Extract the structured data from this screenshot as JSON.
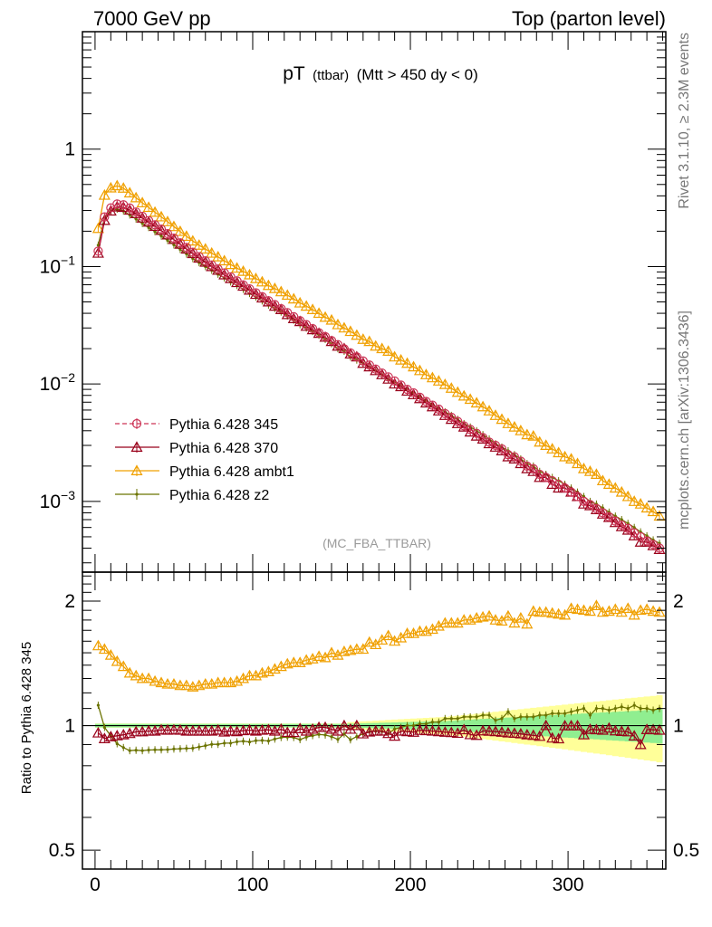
{
  "header": {
    "left": "7000 GeV pp",
    "right": "Top (parton level)"
  },
  "plot_title": {
    "main": "pT",
    "small": "(ttbar)",
    "cut": "(Mtt > 450 dy < 0)"
  },
  "watermark": "(MC_FBA_TTBAR)",
  "side_labels": {
    "rivet": "Rivet 3.1.10, ≥ 2.3M events",
    "mcplots": "mcplots.cern.ch [arXiv:1306.3436]"
  },
  "colors": {
    "p345": "#cc3355",
    "p370": "#99001a",
    "ambt1": "#f0a000",
    "z2": "#6b7300",
    "band_inner": "#90ee90",
    "band_outer": "#ffff99"
  },
  "chart_data": [
    {
      "type": "line",
      "yscale": "log",
      "xlim": [
        -8,
        362
      ],
      "ylim": [
        0.00025,
        10
      ],
      "ylabel": "",
      "yticks": [
        {
          "value": 1,
          "label": "1"
        },
        {
          "value": 0.1,
          "label": "10",
          "exp": "−1"
        },
        {
          "value": 0.01,
          "label": "10",
          "exp": "−2"
        },
        {
          "value": 0.001,
          "label": "10",
          "exp": "−3"
        }
      ],
      "legend_position": "bottom-left",
      "x": [
        2,
        6,
        10,
        14,
        18,
        22,
        26,
        30,
        34,
        38,
        42,
        46,
        50,
        54,
        58,
        62,
        66,
        70,
        74,
        78,
        82,
        86,
        90,
        94,
        98,
        102,
        106,
        110,
        114,
        118,
        122,
        126,
        130,
        134,
        138,
        142,
        146,
        150,
        154,
        158,
        162,
        166,
        170,
        174,
        178,
        182,
        186,
        190,
        194,
        198,
        202,
        206,
        210,
        214,
        218,
        222,
        226,
        230,
        234,
        238,
        242,
        246,
        250,
        254,
        258,
        262,
        266,
        270,
        274,
        278,
        282,
        286,
        290,
        294,
        298,
        302,
        306,
        310,
        314,
        318,
        322,
        326,
        330,
        334,
        338,
        342,
        346,
        350,
        354,
        358
      ],
      "series": [
        {
          "name": "Pythia 6.428 345",
          "key": "p345",
          "marker": "circle",
          "dashed": true,
          "values": [
            0.1353,
            0.2645,
            0.3163,
            0.3407,
            0.3356,
            0.3155,
            0.2914,
            0.2679,
            0.2462,
            0.2265,
            0.2082,
            0.1908,
            0.1743,
            0.1592,
            0.1453,
            0.1326,
            0.1216,
            0.1119,
            0.1032,
            0.0954,
            0.0882,
            0.0816,
            0.0755,
            0.0698,
            0.0646,
            0.0598,
            0.0554,
            0.0512,
            0.0474,
            0.0438,
            0.0405,
            0.0374,
            0.0346,
            0.032,
            0.0296,
            0.0273,
            0.0253,
            0.0234,
            0.0216,
            0.0199,
            0.0184,
            0.017,
            0.0157,
            0.0145,
            0.0134,
            0.0124,
            0.0115,
            0.0106,
            0.0098,
            0.009,
            0.0084,
            0.0077,
            0.0071,
            0.0066,
            0.0061,
            0.0056,
            0.0052,
            0.0048,
            0.0044,
            0.0041,
            0.0038,
            0.0035,
            0.0032,
            0.003,
            0.0028,
            0.0025,
            0.0024,
            0.0022,
            0.002,
            0.0019,
            0.0017,
            0.0016,
            0.0015,
            0.0014,
            0.0013,
            0.0012,
            0.0011,
            0.001,
            0.00094,
            0.00087,
            0.0008,
            0.00074,
            0.00068,
            0.00063,
            0.00059,
            0.00054,
            0.0005,
            0.00046,
            0.00043,
            0.0004
          ]
        },
        {
          "name": "Pythia 6.428 370",
          "key": "p370",
          "marker": "triangle",
          "dashed": false,
          "values": [
            0.13,
            0.247,
            0.297,
            0.322,
            0.319,
            0.302,
            0.282,
            0.259,
            0.239,
            0.22,
            0.203,
            0.186,
            0.17,
            0.155,
            0.141,
            0.129,
            0.118,
            0.109,
            0.1,
            0.093,
            0.085,
            0.079,
            0.073,
            0.068,
            0.063,
            0.058,
            0.054,
            0.05,
            0.046,
            0.043,
            0.039,
            0.036,
            0.034,
            0.031,
            0.029,
            0.027,
            0.025,
            0.023,
            0.021,
            0.02,
            0.018,
            0.017,
            0.015,
            0.014,
            0.013,
            0.012,
            0.011,
            0.01,
            0.0095,
            0.0087,
            0.0081,
            0.0075,
            0.0069,
            0.0064,
            0.0059,
            0.0054,
            0.005,
            0.0046,
            0.0043,
            0.0039,
            0.0036,
            0.0034,
            0.0031,
            0.0029,
            0.0027,
            0.0024,
            0.0023,
            0.0021,
            0.0019,
            0.0018,
            0.0016,
            0.0016,
            0.0014,
            0.0013,
            0.0013,
            0.0012,
            0.0011,
            0.00095,
            0.00092,
            0.00085,
            0.00078,
            0.00073,
            0.00066,
            0.00061,
            0.00057,
            0.00051,
            0.00045,
            0.00045,
            0.00042,
            0.00039
          ]
        },
        {
          "name": "Pythia 6.428 ambt1",
          "key": "ambt1",
          "marker": "triangle",
          "dashed": false,
          "values": [
            0.211,
            0.405,
            0.467,
            0.487,
            0.465,
            0.424,
            0.385,
            0.349,
            0.319,
            0.29,
            0.265,
            0.241,
            0.219,
            0.199,
            0.181,
            0.165,
            0.152,
            0.141,
            0.13,
            0.121,
            0.112,
            0.104,
            0.097,
            0.091,
            0.085,
            0.079,
            0.074,
            0.069,
            0.065,
            0.061,
            0.057,
            0.053,
            0.049,
            0.046,
            0.043,
            0.04,
            0.037,
            0.035,
            0.032,
            0.03,
            0.028,
            0.026,
            0.024,
            0.023,
            0.021,
            0.02,
            0.019,
            0.017,
            0.016,
            0.015,
            0.014,
            0.013,
            0.012,
            0.0113,
            0.0106,
            0.0099,
            0.0092,
            0.0085,
            0.0079,
            0.0074,
            0.0069,
            0.0064,
            0.0059,
            0.0054,
            0.005,
            0.0046,
            0.0043,
            0.004,
            0.0037,
            0.0036,
            0.0032,
            0.003,
            0.0028,
            0.0026,
            0.0024,
            0.0023,
            0.0021,
            0.0019,
            0.0018,
            0.0017,
            0.0015,
            0.0014,
            0.0013,
            0.0012,
            0.0011,
            0.001,
            0.00095,
            0.00088,
            0.00082,
            0.00075
          ]
        },
        {
          "name": "Pythia 6.428 z2",
          "key": "z2",
          "marker": "dot",
          "dashed": false,
          "values": [
            0.152,
            0.262,
            0.299,
            0.308,
            0.297,
            0.275,
            0.254,
            0.233,
            0.215,
            0.198,
            0.182,
            0.167,
            0.153,
            0.14,
            0.128,
            0.117,
            0.108,
            0.1,
            0.093,
            0.086,
            0.08,
            0.074,
            0.069,
            0.064,
            0.059,
            0.055,
            0.051,
            0.047,
            0.044,
            0.041,
            0.038,
            0.035,
            0.032,
            0.03,
            0.028,
            0.026,
            0.024,
            0.022,
            0.02,
            0.019,
            0.017,
            0.016,
            0.015,
            0.014,
            0.013,
            0.012,
            0.011,
            0.0104,
            0.0097,
            0.009,
            0.0084,
            0.0078,
            0.0072,
            0.0067,
            0.0062,
            0.0058,
            0.0054,
            0.005,
            0.0046,
            0.0043,
            0.004,
            0.0037,
            0.0034,
            0.0031,
            0.0029,
            0.0027,
            0.0025,
            0.0023,
            0.0021,
            0.002,
            0.0018,
            0.0017,
            0.0016,
            0.0015,
            0.0014,
            0.0013,
            0.0012,
            0.0011,
            0.001,
            0.00095,
            0.00088,
            0.00081,
            0.00075,
            0.0007,
            0.00065,
            0.0006,
            0.00055,
            0.00051,
            0.00047,
            0.00044
          ]
        }
      ]
    },
    {
      "type": "line",
      "yscale": "log",
      "xlim": [
        -8,
        362
      ],
      "ylim": [
        0.45,
        2.35
      ],
      "ylabel": "Ratio to Pythia 6.428 345",
      "xticks": [
        0,
        100,
        200,
        300
      ],
      "yticks": [
        2,
        1,
        0.5
      ],
      "x": [
        2,
        6,
        10,
        14,
        18,
        22,
        26,
        30,
        34,
        38,
        42,
        46,
        50,
        54,
        58,
        62,
        66,
        70,
        74,
        78,
        82,
        86,
        90,
        94,
        98,
        102,
        106,
        110,
        114,
        118,
        122,
        126,
        130,
        134,
        138,
        142,
        146,
        150,
        154,
        158,
        162,
        166,
        170,
        174,
        178,
        182,
        186,
        190,
        194,
        198,
        202,
        206,
        210,
        214,
        218,
        222,
        226,
        230,
        234,
        238,
        242,
        246,
        250,
        254,
        258,
        262,
        266,
        270,
        274,
        278,
        282,
        286,
        290,
        294,
        298,
        302,
        306,
        310,
        314,
        318,
        322,
        326,
        330,
        334,
        338,
        342,
        346,
        350,
        354,
        358
      ],
      "band_inner": [
        0.01,
        0.01,
        0.01,
        0.01,
        0.01,
        0.01,
        0.01,
        0.01,
        0.01,
        0.01,
        0.01,
        0.01,
        0.01,
        0.01,
        0.01,
        0.01,
        0.01,
        0.01,
        0.01,
        0.01,
        0.01,
        0.01,
        0.01,
        0.01,
        0.01,
        0.01,
        0.01,
        0.01,
        0.01,
        0.01,
        0.01,
        0.01,
        0.01,
        0.01,
        0.01,
        0.01,
        0.01,
        0.01,
        0.01,
        0.01,
        0.012,
        0.012,
        0.013,
        0.014,
        0.015,
        0.016,
        0.017,
        0.018,
        0.019,
        0.02,
        0.021,
        0.022,
        0.023,
        0.024,
        0.025,
        0.026,
        0.028,
        0.03,
        0.032,
        0.034,
        0.036,
        0.038,
        0.04,
        0.042,
        0.044,
        0.046,
        0.048,
        0.05,
        0.052,
        0.054,
        0.056,
        0.058,
        0.06,
        0.062,
        0.064,
        0.066,
        0.068,
        0.07,
        0.072,
        0.074,
        0.076,
        0.078,
        0.08,
        0.082,
        0.084,
        0.086,
        0.088,
        0.09,
        0.092,
        0.095
      ],
      "band_outer": [
        0.012,
        0.012,
        0.012,
        0.012,
        0.012,
        0.012,
        0.012,
        0.012,
        0.012,
        0.012,
        0.012,
        0.012,
        0.012,
        0.012,
        0.012,
        0.012,
        0.012,
        0.012,
        0.012,
        0.012,
        0.012,
        0.012,
        0.012,
        0.012,
        0.012,
        0.012,
        0.012,
        0.012,
        0.012,
        0.012,
        0.012,
        0.012,
        0.012,
        0.012,
        0.012,
        0.012,
        0.012,
        0.012,
        0.012,
        0.012,
        0.02,
        0.022,
        0.024,
        0.026,
        0.028,
        0.03,
        0.032,
        0.034,
        0.036,
        0.038,
        0.04,
        0.042,
        0.044,
        0.046,
        0.048,
        0.05,
        0.053,
        0.056,
        0.06,
        0.064,
        0.068,
        0.072,
        0.076,
        0.08,
        0.084,
        0.088,
        0.092,
        0.096,
        0.1,
        0.104,
        0.108,
        0.112,
        0.116,
        0.12,
        0.124,
        0.128,
        0.132,
        0.136,
        0.14,
        0.144,
        0.148,
        0.152,
        0.156,
        0.16,
        0.164,
        0.168,
        0.172,
        0.176,
        0.18,
        0.185
      ],
      "series": [
        {
          "name": "Pythia 6.428 370",
          "key": "p370",
          "marker": "triangle",
          "values": [
            0.96,
            0.93,
            0.94,
            0.945,
            0.95,
            0.957,
            0.966,
            0.966,
            0.97,
            0.97,
            0.976,
            0.975,
            0.976,
            0.975,
            0.97,
            0.97,
            0.97,
            0.97,
            0.97,
            0.975,
            0.965,
            0.97,
            0.967,
            0.972,
            0.975,
            0.97,
            0.975,
            0.977,
            0.97,
            0.98,
            0.963,
            0.962,
            0.983,
            0.97,
            0.98,
            0.99,
            0.99,
            0.98,
            0.97,
            1.0,
            0.98,
            1.0,
            0.955,
            0.965,
            0.97,
            0.97,
            0.957,
            0.943,
            0.97,
            0.967,
            0.964,
            0.974,
            0.972,
            0.97,
            0.967,
            0.964,
            0.962,
            0.958,
            0.977,
            0.951,
            0.947,
            0.971,
            0.969,
            0.967,
            0.964,
            0.96,
            0.958,
            0.955,
            0.95,
            0.947,
            0.942,
            1.0,
            0.933,
            0.929,
            0.999,
            0.999,
            0.999,
            0.95,
            0.979,
            0.977,
            0.975,
            0.986,
            0.971,
            0.968,
            0.966,
            0.944,
            0.9,
            0.978,
            0.977,
            0.975
          ]
        },
        {
          "name": "Pythia 6.428 ambt1",
          "key": "ambt1",
          "marker": "triangle",
          "values": [
            1.56,
            1.53,
            1.48,
            1.43,
            1.39,
            1.34,
            1.32,
            1.3,
            1.3,
            1.28,
            1.27,
            1.26,
            1.26,
            1.25,
            1.25,
            1.24,
            1.25,
            1.26,
            1.26,
            1.27,
            1.27,
            1.27,
            1.28,
            1.3,
            1.32,
            1.32,
            1.34,
            1.35,
            1.37,
            1.39,
            1.41,
            1.42,
            1.42,
            1.44,
            1.45,
            1.47,
            1.46,
            1.5,
            1.48,
            1.51,
            1.52,
            1.53,
            1.53,
            1.59,
            1.57,
            1.61,
            1.65,
            1.6,
            1.63,
            1.67,
            1.67,
            1.69,
            1.69,
            1.71,
            1.74,
            1.77,
            1.77,
            1.77,
            1.8,
            1.8,
            1.82,
            1.83,
            1.84,
            1.8,
            1.79,
            1.84,
            1.77,
            1.82,
            1.76,
            1.89,
            1.88,
            1.88,
            1.87,
            1.86,
            1.85,
            1.92,
            1.91,
            1.9,
            1.89,
            1.95,
            1.88,
            1.89,
            1.91,
            1.88,
            1.92,
            1.85,
            1.9,
            1.91,
            1.89,
            1.88
          ]
        },
        {
          "name": "Pythia 6.428 z2",
          "key": "z2",
          "marker": "dot",
          "values": [
            1.12,
            0.99,
            0.945,
            0.904,
            0.885,
            0.87,
            0.872,
            0.87,
            0.873,
            0.874,
            0.874,
            0.875,
            0.878,
            0.879,
            0.881,
            0.882,
            0.888,
            0.894,
            0.901,
            0.901,
            0.907,
            0.907,
            0.914,
            0.917,
            0.913,
            0.92,
            0.921,
            0.918,
            0.928,
            0.936,
            0.938,
            0.936,
            0.925,
            0.938,
            0.946,
            0.952,
            0.949,
            0.94,
            0.926,
            0.955,
            0.924,
            0.941,
            0.955,
            0.966,
            0.97,
            0.968,
            0.957,
            0.981,
            0.99,
            1.0,
            1.0,
            1.01,
            1.01,
            1.02,
            1.02,
            1.04,
            1.04,
            1.04,
            1.05,
            1.05,
            1.05,
            1.06,
            1.06,
            1.03,
            1.04,
            1.08,
            1.04,
            1.05,
            1.05,
            1.05,
            1.06,
            1.06,
            1.07,
            1.07,
            1.07,
            1.08,
            1.09,
            1.1,
            1.06,
            1.1,
            1.1,
            1.09,
            1.1,
            1.11,
            1.1,
            1.12,
            1.1,
            1.1,
            1.09,
            1.1
          ]
        }
      ]
    }
  ],
  "legend": [
    {
      "key": "p345",
      "label": "Pythia 6.428 345"
    },
    {
      "key": "p370",
      "label": "Pythia 6.428 370"
    },
    {
      "key": "ambt1",
      "label": "Pythia 6.428 ambt1"
    },
    {
      "key": "z2",
      "label": "Pythia 6.428 z2"
    }
  ]
}
